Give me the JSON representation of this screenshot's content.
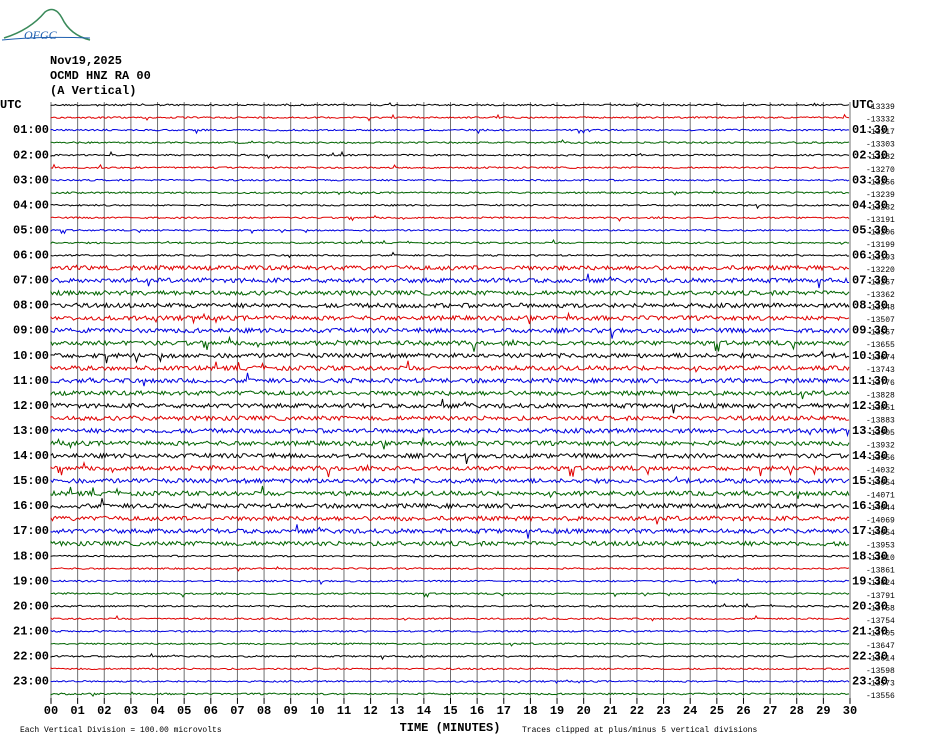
{
  "chart_data": {
    "type": "helicorder",
    "logo": "OFGC",
    "title_lines": [
      "Nov19,2025",
      "OCMD HNZ RA 00",
      "(A Vertical)"
    ],
    "left_labels": [
      "UTC",
      "01:00",
      "02:00",
      "03:00",
      "04:00",
      "05:00",
      "06:00",
      "07:00",
      "08:00",
      "09:00",
      "10:00",
      "11:00",
      "12:00",
      "13:00",
      "14:00",
      "15:00",
      "16:00",
      "17:00",
      "18:00",
      "19:00",
      "20:00",
      "21:00",
      "22:00",
      "23:00"
    ],
    "right_labels": [
      "UTC",
      "01:30",
      "02:30",
      "03:30",
      "04:30",
      "05:30",
      "06:30",
      "07:30",
      "08:30",
      "09:30",
      "10:30",
      "11:30",
      "12:30",
      "13:30",
      "14:30",
      "15:30",
      "16:30",
      "17:30",
      "18:30",
      "19:30",
      "20:30",
      "21:30",
      "22:30",
      "23:30"
    ],
    "trace_offsets": [
      -13339,
      -13332,
      -13317,
      -13303,
      -13282,
      -13270,
      -13256,
      -13239,
      -13232,
      -13191,
      -13206,
      -13199,
      -13193,
      -13220,
      -13267,
      -13362,
      -13348,
      -13507,
      -13567,
      -13655,
      -13674,
      -13743,
      -13776,
      -13828,
      -13851,
      -13883,
      -13905,
      -13932,
      -13956,
      -14032,
      -14054,
      -14071,
      -14044,
      -14069,
      -14054,
      -13953,
      -13910,
      -13861,
      -13824,
      -13791,
      -13758,
      -13754,
      -13705,
      -13647,
      -13614,
      -13598,
      -13573,
      -13556
    ],
    "trace_colors": [
      "#000000",
      "#e00000",
      "#0000e0",
      "#006400"
    ],
    "xlim": [
      0,
      30
    ],
    "xticks": [
      {
        "value": 0,
        "label": "00"
      },
      {
        "value": 1,
        "label": "01"
      },
      {
        "value": 2,
        "label": "02"
      },
      {
        "value": 3,
        "label": "03"
      },
      {
        "value": 4,
        "label": "04"
      },
      {
        "value": 5,
        "label": "05"
      },
      {
        "value": 6,
        "label": "06"
      },
      {
        "value": 7,
        "label": "07"
      },
      {
        "value": 8,
        "label": "08"
      },
      {
        "value": 9,
        "label": "09"
      },
      {
        "value": 10,
        "label": "10"
      },
      {
        "value": 11,
        "label": "11"
      },
      {
        "value": 12,
        "label": "12"
      },
      {
        "value": 13,
        "label": "13"
      },
      {
        "value": 14,
        "label": "14"
      },
      {
        "value": 15,
        "label": "15"
      },
      {
        "value": 16,
        "label": "16"
      },
      {
        "value": 17,
        "label": "17"
      },
      {
        "value": 18,
        "label": "18"
      },
      {
        "value": 19,
        "label": "19"
      },
      {
        "value": 20,
        "label": "20"
      },
      {
        "value": 21,
        "label": "21"
      },
      {
        "value": 22,
        "label": "22"
      },
      {
        "value": 23,
        "label": "23"
      },
      {
        "value": 24,
        "label": "24"
      },
      {
        "value": 25,
        "label": "25"
      },
      {
        "value": 26,
        "label": "26"
      },
      {
        "value": 27,
        "label": "27"
      },
      {
        "value": 28,
        "label": "28"
      },
      {
        "value": 29,
        "label": "29"
      },
      {
        "value": 30,
        "label": "30"
      }
    ],
    "xlabel": "TIME (MINUTES)",
    "footer_left": "Each Vertical Division =  100.00 microvolts",
    "footer_right": "Traces clipped at plus/minus 5 vertical divisions",
    "grid": true
  }
}
